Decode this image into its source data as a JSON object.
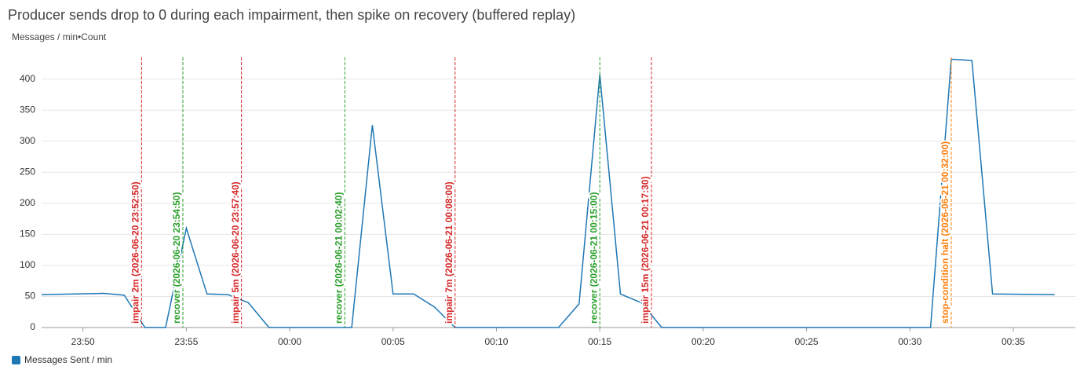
{
  "chart_data": {
    "type": "line",
    "title": "Producer sends drop to 0 during each impairment, then spike on recovery (buffered replay)",
    "y_label": "Messages / min•Count",
    "x": [
      "23:48",
      "23:51",
      "23:52",
      "23:53",
      "23:54",
      "23:55",
      "23:56",
      "23:57",
      "23:58",
      "23:59",
      "00:00",
      "00:01",
      "00:02",
      "00:03",
      "00:04",
      "00:05",
      "00:06",
      "00:07",
      "00:08",
      "00:09",
      "00:10",
      "00:11",
      "00:12",
      "00:13",
      "00:14",
      "00:15",
      "00:16",
      "00:17",
      "00:18",
      "00:19",
      "00:20",
      "00:25",
      "00:30",
      "00:31",
      "00:32",
      "00:33",
      "00:34",
      "00:37"
    ],
    "series": [
      {
        "name": "Messages Sent / min",
        "color": "#1f77b4",
        "values": [
          53,
          55,
          52,
          0,
          0,
          160,
          54,
          53,
          40,
          0,
          0,
          0,
          0,
          0,
          326,
          54,
          54,
          33,
          0,
          0,
          0,
          0,
          0,
          0,
          38,
          407,
          54,
          40,
          0,
          0,
          0,
          0,
          0,
          0,
          432,
          430,
          54,
          53
        ]
      }
    ],
    "xlim": [
      "23:48",
      "00:38"
    ],
    "xticks": [
      "23:50",
      "23:55",
      "00:00",
      "00:05",
      "00:10",
      "00:15",
      "00:20",
      "00:25",
      "00:30",
      "00:35"
    ],
    "ylim": [
      0,
      435
    ],
    "yticks": [
      0,
      50,
      100,
      150,
      200,
      250,
      300,
      350,
      400
    ],
    "grid": true,
    "annotations": [
      {
        "label": "impair 2m (2026-06-20 23:52:50)",
        "x": "23:52:50",
        "color": "#d62728"
      },
      {
        "label": "recover (2026-06-20 23:54:50)",
        "x": "23:54:50",
        "color": "#2ca02c"
      },
      {
        "label": "impair 5m (2026-06-20 23:57:40)",
        "x": "23:57:40",
        "color": "#d62728"
      },
      {
        "label": "recover (2026-06-21 00:02:40)",
        "x": "00:02:40",
        "color": "#2ca02c"
      },
      {
        "label": "impair 7m (2026-06-21 00:08:00)",
        "x": "00:08:00",
        "color": "#d62728"
      },
      {
        "label": "recover (2026-06-21 00:15:00)",
        "x": "00:15:00",
        "color": "#2ca02c"
      },
      {
        "label": "impair 15m (2026-06-21 00:17:30)",
        "x": "00:17:30",
        "color": "#d62728"
      },
      {
        "label": "stop-condition halt (2026-06-21 00:32:00)",
        "x": "00:32:00",
        "color": "#ff7f0e"
      }
    ]
  }
}
